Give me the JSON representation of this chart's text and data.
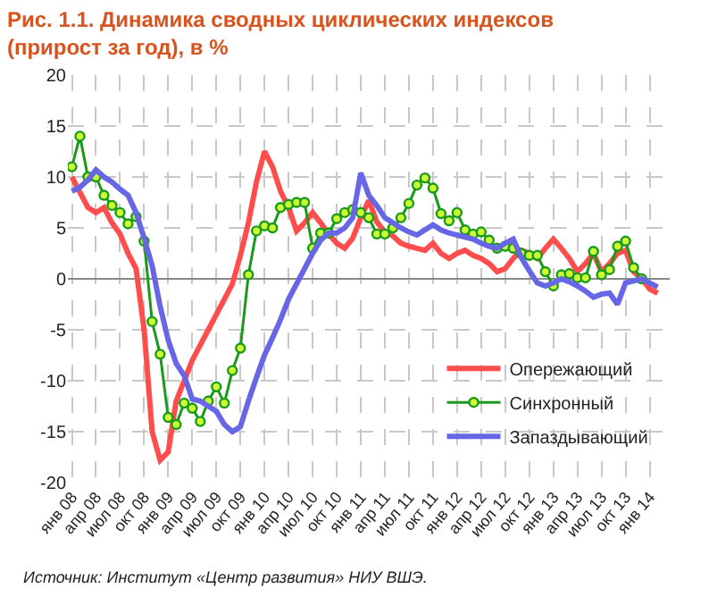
{
  "chart_data": {
    "type": "line",
    "title": "Рис. 1.1. Динамика сводных циклических индексов (прирост за год), в %",
    "categories": [
      "янв 08",
      null,
      null,
      "апр 08",
      null,
      null,
      "июл 08",
      null,
      null,
      "окт 08",
      null,
      null,
      "янв 09",
      null,
      null,
      "апр 09",
      null,
      null,
      "июл 09",
      null,
      null,
      "окт 09",
      null,
      null,
      "янв 10",
      null,
      null,
      "апр 10",
      null,
      null,
      "июл 10",
      null,
      null,
      "окт 10",
      null,
      null,
      "янв 11",
      null,
      null,
      "апр 11",
      null,
      null,
      "июл 11",
      null,
      null,
      "окт 11",
      null,
      null,
      "янв 12",
      null,
      null,
      "апр 12",
      null,
      null,
      "июл 12",
      null,
      null,
      "окт 12",
      null,
      null,
      "янв 13",
      null,
      null,
      "апр 13",
      null,
      null,
      "июл 13",
      null,
      null,
      "окт 13",
      null,
      null,
      "янв 14",
      null
    ],
    "series": [
      {
        "name": "Опережающий",
        "color": "#ff4d4d",
        "marker": "none",
        "values": [
          10,
          8.5,
          7,
          6.5,
          7,
          5.5,
          4.4,
          2.5,
          1,
          -5,
          -15,
          -17.8,
          -17,
          -12,
          -10,
          -8,
          -6.5,
          -5,
          -3.5,
          -2,
          -0.5,
          2.3,
          5.5,
          9.5,
          12.5,
          11,
          8.6,
          7,
          4.7,
          5.5,
          6.5,
          5.5,
          4.4,
          3.5,
          3,
          4,
          6,
          7.7,
          5.6,
          4.6,
          4.2,
          3.5,
          3.2,
          3,
          2.8,
          3.5,
          2.5,
          2,
          2.5,
          2.8,
          2.3,
          2,
          1.5,
          0.7,
          1,
          2,
          2.8,
          2.5,
          2,
          3,
          3.9,
          3,
          2,
          0.7,
          1.5,
          2.5,
          0.7,
          1.5,
          2.5,
          2.8,
          0.7,
          0,
          -1,
          -1.4
        ]
      },
      {
        "name": "Синхронный",
        "color": "#1a9a1a",
        "marker": "circle",
        "values": [
          11,
          14,
          10,
          10,
          8.2,
          7.2,
          6.5,
          5.4,
          6.1,
          3.7,
          -4.2,
          -7.4,
          -13.6,
          -14.3,
          -12.2,
          -12.7,
          -14,
          -12,
          -10.6,
          -12.2,
          -9,
          -6.8,
          0.4,
          4.7,
          5.2,
          5,
          7,
          7.3,
          7.5,
          7.5,
          3,
          4.5,
          4.5,
          5.9,
          6.5,
          6.8,
          6.5,
          6,
          4.4,
          4.4,
          5,
          6,
          7.4,
          9.2,
          9.9,
          8.9,
          6.4,
          5.7,
          6.5,
          4.8,
          4.4,
          4.6,
          3.8,
          3,
          3.2,
          3,
          2.5,
          2.3,
          2.3,
          0.7,
          -0.7,
          0.4,
          0.5,
          0.1,
          0.1,
          2.7,
          0.4,
          0.9,
          3.2,
          3.7,
          1.1,
          0,
          null,
          null
        ]
      },
      {
        "name": "Запаздывающий",
        "color": "#6666e6",
        "marker": "none",
        "values": [
          8.6,
          9,
          9.7,
          10.7,
          10,
          9.5,
          8.8,
          8.2,
          6.5,
          4,
          1.3,
          -2.7,
          -6,
          -8.3,
          -9.5,
          -11.8,
          -12,
          -12.5,
          -13,
          -14.3,
          -15,
          -14.5,
          -12,
          -9.7,
          -7.5,
          -5.8,
          -4,
          -2,
          -0.5,
          1,
          2.5,
          3.8,
          4.5,
          4.5,
          5,
          6,
          10.4,
          8.2,
          7.2,
          6,
          5.5,
          5,
          4.6,
          4.3,
          4.8,
          5.3,
          4.8,
          4.5,
          4.3,
          4.1,
          3.9,
          3.5,
          3.2,
          3,
          3.5,
          3.9,
          2.1,
          0.8,
          -0.4,
          -0.7,
          -0.4,
          0,
          -0.3,
          -0.7,
          -1.2,
          -1.8,
          -1.5,
          -1.4,
          -2.5,
          -0.4,
          -0.2,
          0,
          -0.4,
          -0.8
        ]
      }
    ],
    "ylim": [
      -20,
      20
    ],
    "yticks": [
      -20,
      -15,
      -10,
      -5,
      0,
      5,
      10,
      15,
      20
    ],
    "grid": true,
    "legend": "bottom right",
    "line_style": "solid",
    "annotations": [
      "Источник: Институт «Центр развития» НИУ ВШЭ."
    ]
  }
}
